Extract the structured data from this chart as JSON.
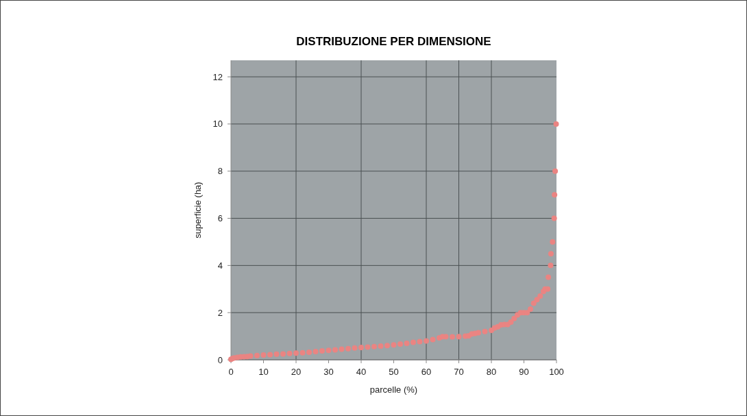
{
  "chart_data": {
    "type": "scatter",
    "title": "DISTRIBUZIONE PER DIMENSIONE",
    "xlabel": "parcelle (%)",
    "ylabel": "superficie (ha)",
    "x": [
      0,
      0.5,
      1,
      2,
      3,
      4,
      5,
      6,
      8,
      10,
      12,
      14,
      16,
      18,
      20,
      22,
      24,
      26,
      28,
      30,
      32,
      34,
      36,
      38,
      40,
      42,
      44,
      46,
      48,
      50,
      52,
      54,
      56,
      58,
      60,
      62,
      64,
      65,
      66,
      68,
      70,
      72,
      73,
      74,
      75,
      76,
      78,
      80,
      81,
      82,
      83,
      84,
      85,
      86,
      87,
      88,
      89,
      90,
      91,
      92,
      93,
      94,
      95,
      96,
      96.5,
      97.3,
      97.5,
      98.2,
      98.3,
      98.8,
      99.3,
      99.4,
      99.6,
      99.9
    ],
    "series": [
      {
        "color": "#ea8482",
        "values": [
          0.02,
          0.06,
          0.08,
          0.1,
          0.12,
          0.13,
          0.14,
          0.16,
          0.18,
          0.2,
          0.22,
          0.24,
          0.25,
          0.27,
          0.28,
          0.3,
          0.32,
          0.35,
          0.38,
          0.4,
          0.42,
          0.45,
          0.47,
          0.5,
          0.52,
          0.54,
          0.56,
          0.58,
          0.6,
          0.63,
          0.67,
          0.7,
          0.74,
          0.77,
          0.8,
          0.86,
          0.93,
          0.98,
          0.98,
          0.97,
          0.98,
          1.0,
          1.02,
          1.1,
          1.12,
          1.15,
          1.2,
          1.25,
          1.35,
          1.4,
          1.48,
          1.5,
          1.5,
          1.6,
          1.75,
          1.9,
          2.0,
          2.0,
          2.0,
          2.15,
          2.4,
          2.55,
          2.7,
          2.9,
          3.0,
          3.0,
          3.5,
          4.0,
          4.5,
          5.0,
          6.0,
          7.0,
          8.0,
          10.0
        ]
      }
    ],
    "xlim": [
      0,
      100
    ],
    "xticks": [
      0,
      10,
      20,
      30,
      40,
      50,
      60,
      70,
      80,
      90,
      100
    ],
    "ref_lines": [
      {
        "axis": "x",
        "value": 20,
        "color": "#4a5052"
      },
      {
        "axis": "x",
        "value": 40,
        "color": "#4a5052"
      },
      {
        "axis": "x",
        "value": 60,
        "color": "#4a5052"
      },
      {
        "axis": "x",
        "value": 70,
        "color": "#4a5052"
      },
      {
        "axis": "x",
        "value": 80,
        "color": "#4a5052"
      }
    ],
    "ylim": [
      0,
      12.7
    ],
    "yticks": [
      0,
      2,
      4,
      6,
      8,
      10,
      12
    ],
    "grid": "y",
    "marker": "circle"
  }
}
